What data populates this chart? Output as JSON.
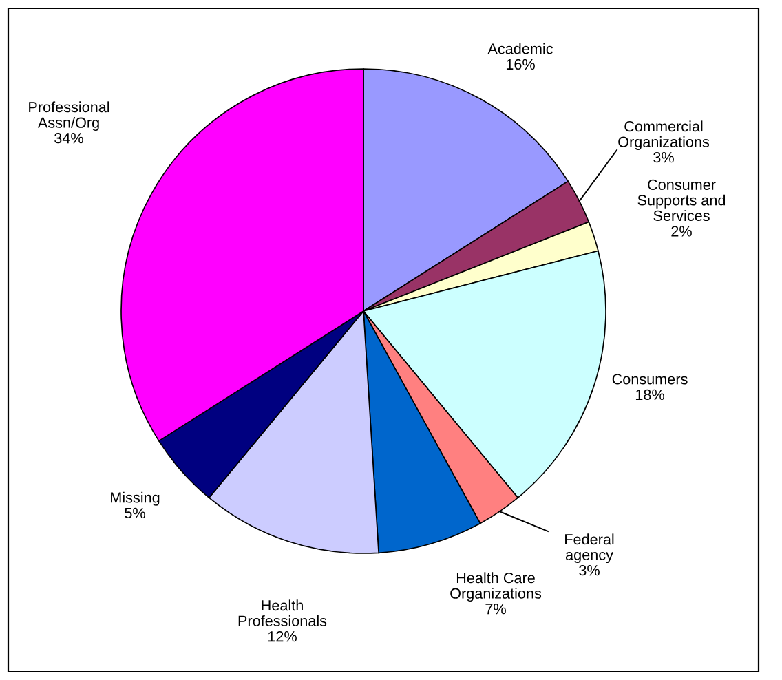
{
  "chart_data": {
    "type": "pie",
    "categories": [
      "Academic",
      "Commercial\nOrganizations",
      "Consumer\nSupports and\nServices",
      "Consumers",
      "Federal\nagency",
      "Health Care\nOrganizations",
      "Health\nProfessionals",
      "Missing",
      "Professional\nAssn/Org"
    ],
    "values": [
      16,
      3,
      2,
      18,
      3,
      7,
      12,
      5,
      34
    ],
    "value_labels": [
      "16%",
      "3%",
      "2%",
      "18%",
      "3%",
      "7%",
      "12%",
      "5%",
      "34%"
    ],
    "colors": [
      "#9999ff",
      "#993366",
      "#ffffcc",
      "#ccffff",
      "#ff8080",
      "#0066cc",
      "#ccccff",
      "#000080",
      "#ff00ff"
    ],
    "legend": false
  }
}
